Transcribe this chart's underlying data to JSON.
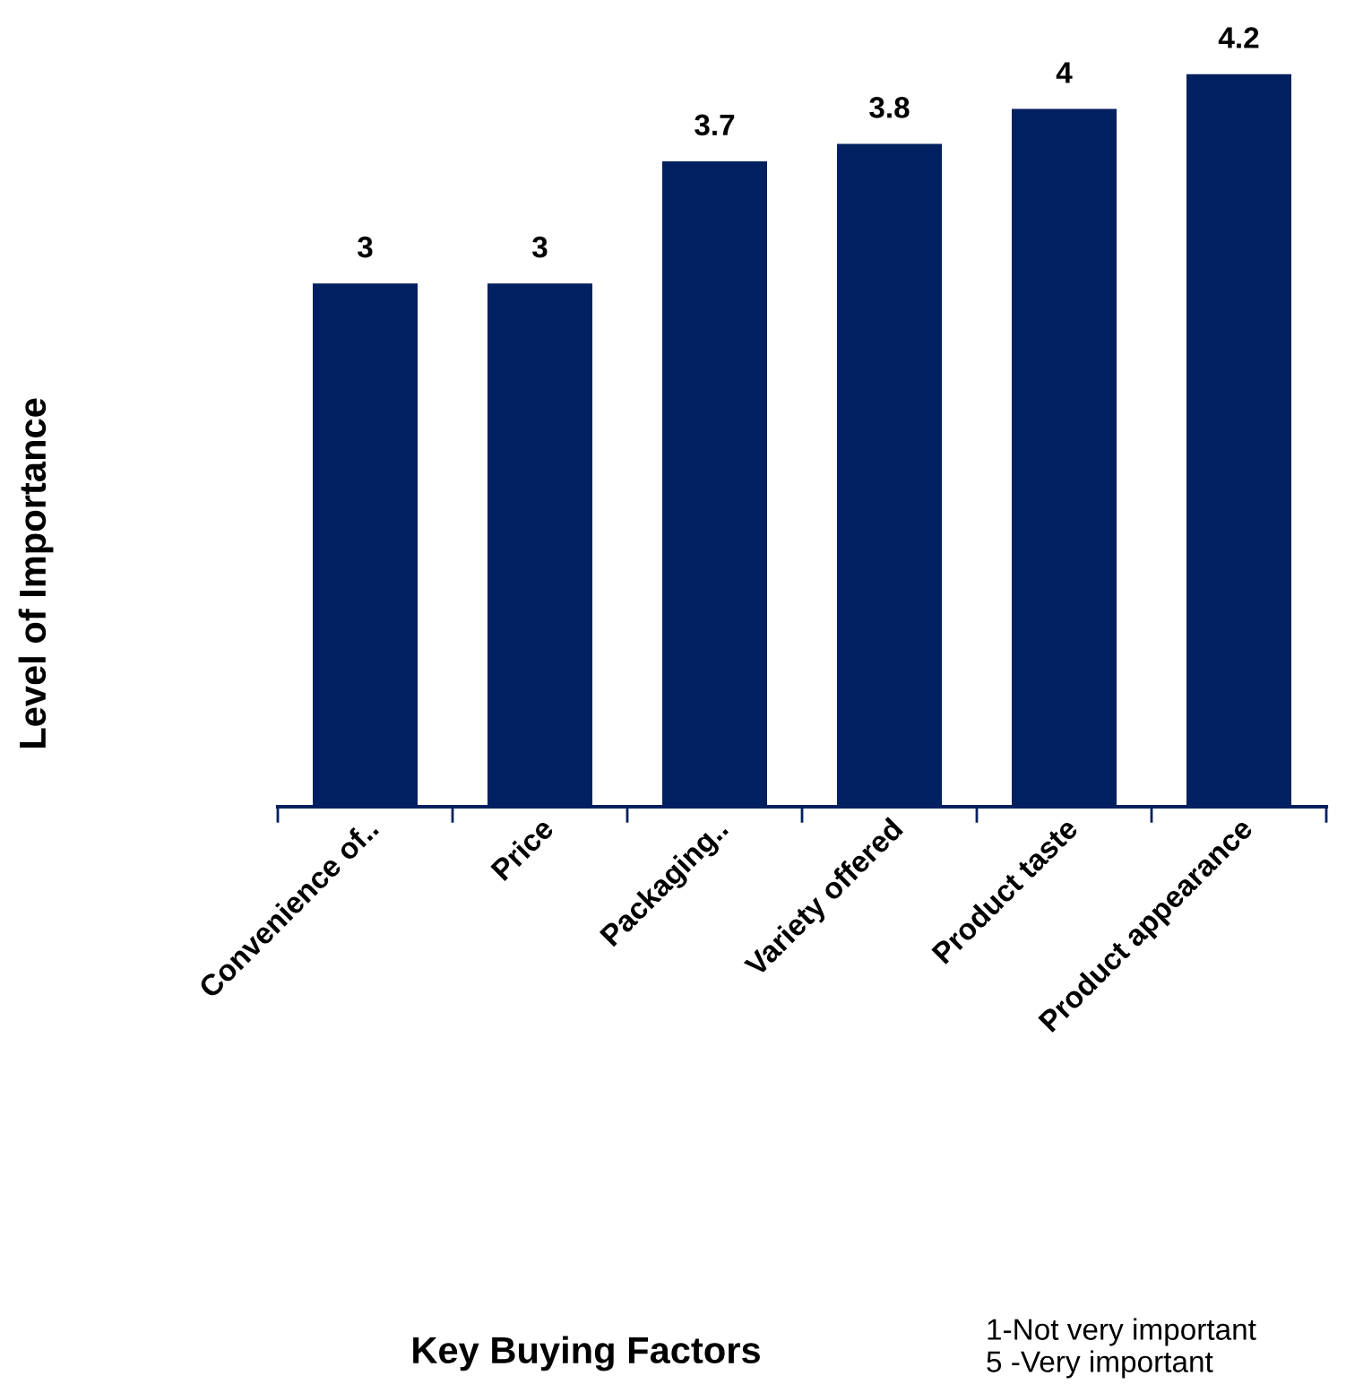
{
  "chart_data": {
    "type": "bar",
    "categories": [
      "Convenience of..",
      "Price",
      "Packaging..",
      "Variety offered",
      "Product taste",
      "Product appearance"
    ],
    "values": [
      3,
      3,
      3.7,
      3.8,
      4,
      4.2
    ],
    "color": "#002060",
    "data_labels": true,
    "tick_labels": "x",
    "grid": false,
    "legend": false,
    "annotations": [
      "Level of Importance",
      "Key Buying Factors",
      "1-Not very important",
      "5 -Very important"
    ]
  }
}
